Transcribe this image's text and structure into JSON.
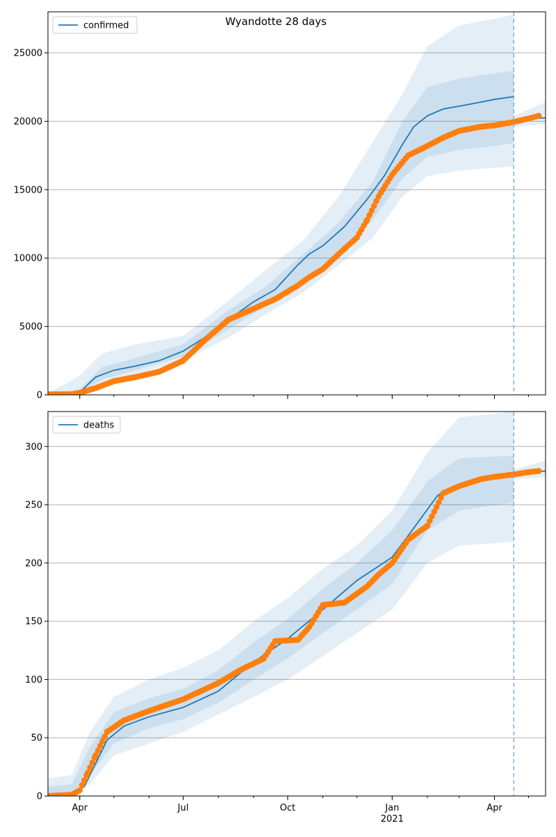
{
  "title": "Wyandotte 28 days",
  "colors": {
    "model": "#1f77b4",
    "observed": "#ff7f0e",
    "band": "#1f77b4",
    "grid": "#b0b0b0",
    "forecast_line": "#7fb0d5"
  },
  "x_ticks": [
    {
      "date": "2020-04-01",
      "label": "Apr"
    },
    {
      "date": "2020-07-01",
      "label": "Jul"
    },
    {
      "date": "2020-10-01",
      "label": "Oct"
    },
    {
      "date": "2021-01-01",
      "label": "Jan",
      "sublabel": "2021"
    },
    {
      "date": "2021-04-01",
      "label": "Apr"
    }
  ],
  "chart_data": [
    {
      "type": "line",
      "legend": "confirmed",
      "legend_position": "top-left",
      "grid": "horizontal",
      "xlim": [
        "2020-03-04",
        "2021-05-16"
      ],
      "ylim": [
        0,
        28000
      ],
      "yticks": [
        0,
        5000,
        10000,
        15000,
        20000,
        25000
      ],
      "forecast_date": "2021-04-18",
      "series": [
        {
          "name": "confirmed",
          "role": "model",
          "x": [
            "2020-03-04",
            "2020-03-20",
            "2020-04-01",
            "2020-04-15",
            "2020-05-01",
            "2020-05-20",
            "2020-06-10",
            "2020-07-01",
            "2020-07-20",
            "2020-08-10",
            "2020-09-01",
            "2020-09-20",
            "2020-10-10",
            "2020-10-20",
            "2020-11-01",
            "2020-11-20",
            "2020-12-10",
            "2020-12-25",
            "2021-01-10",
            "2021-01-20",
            "2021-02-01",
            "2021-02-15",
            "2021-03-01",
            "2021-03-20",
            "2021-04-01",
            "2021-04-18"
          ],
          "y": [
            0,
            0,
            200,
            1300,
            1800,
            2100,
            2500,
            3200,
            4200,
            5500,
            6800,
            7700,
            9500,
            10300,
            10900,
            12300,
            14300,
            16000,
            18300,
            19600,
            20400,
            20900,
            21100,
            21400,
            21600,
            21800
          ]
        },
        {
          "name": "forecast",
          "role": "model",
          "x": [
            "2021-04-18",
            "2021-04-25",
            "2021-05-05",
            "2021-05-16"
          ],
          "y": [
            20000,
            20100,
            20200,
            20250
          ]
        },
        {
          "name": "observed",
          "role": "observed",
          "x": [
            "2020-03-04",
            "2020-03-25",
            "2020-04-01",
            "2020-04-15",
            "2020-05-01",
            "2020-05-20",
            "2020-06-10",
            "2020-07-01",
            "2020-07-20",
            "2020-08-10",
            "2020-09-01",
            "2020-09-20",
            "2020-10-10",
            "2020-10-20",
            "2020-11-01",
            "2020-11-15",
            "2020-12-01",
            "2020-12-10",
            "2020-12-20",
            "2021-01-01",
            "2021-01-15",
            "2021-02-01",
            "2021-02-15",
            "2021-03-01",
            "2021-03-20",
            "2021-04-01",
            "2021-04-15",
            "2021-05-01",
            "2021-05-10"
          ],
          "y": [
            50,
            50,
            150,
            500,
            1000,
            1300,
            1700,
            2500,
            4000,
            5500,
            6300,
            7000,
            8000,
            8600,
            9200,
            10300,
            11500,
            12800,
            14500,
            16100,
            17500,
            18200,
            18800,
            19300,
            19600,
            19700,
            19900,
            20200,
            20400
          ]
        },
        {
          "name": "band-outer",
          "role": "band",
          "x": [
            "2020-03-04",
            "2020-04-01",
            "2020-04-20",
            "2020-05-20",
            "2020-07-01",
            "2020-08-10",
            "2020-09-10",
            "2020-10-15",
            "2020-11-15",
            "2020-12-15",
            "2021-01-10",
            "2021-02-01",
            "2021-03-01",
            "2021-04-01",
            "2021-04-18"
          ],
          "low": [
            0,
            50,
            800,
            1500,
            2500,
            4200,
            5800,
            7500,
            9500,
            11500,
            14500,
            16000,
            16400,
            16600,
            16700
          ],
          "high": [
            100,
            1400,
            3000,
            3700,
            4300,
            6900,
            9000,
            11300,
            14500,
            18500,
            22000,
            25500,
            27000,
            27500,
            27800
          ]
        },
        {
          "name": "band-inner",
          "role": "band",
          "x": [
            "2020-03-04",
            "2020-04-01",
            "2020-04-20",
            "2020-05-20",
            "2020-07-01",
            "2020-08-10",
            "2020-09-10",
            "2020-10-15",
            "2020-11-15",
            "2020-12-15",
            "2021-01-10",
            "2021-02-01",
            "2021-03-01",
            "2021-04-01",
            "2021-04-18"
          ],
          "low": [
            0,
            150,
            1100,
            1800,
            2800,
            4800,
            6400,
            8200,
            10400,
            12800,
            15800,
            17400,
            17900,
            18200,
            18400
          ],
          "high": [
            50,
            400,
            2000,
            2700,
            3700,
            6200,
            7800,
            10300,
            12600,
            15600,
            20000,
            22500,
            23100,
            23500,
            23700
          ]
        },
        {
          "name": "band-future",
          "role": "band",
          "x": [
            "2021-04-18",
            "2021-05-16"
          ],
          "low": [
            19600,
            19800
          ],
          "high": [
            20400,
            21400
          ]
        }
      ]
    },
    {
      "type": "line",
      "legend": "deaths",
      "legend_position": "top-left",
      "grid": "horizontal",
      "xlim": [
        "2020-03-04",
        "2021-05-16"
      ],
      "ylim": [
        0,
        330
      ],
      "yticks": [
        0,
        50,
        100,
        150,
        200,
        250,
        300
      ],
      "forecast_date": "2021-04-18",
      "series": [
        {
          "name": "deaths",
          "role": "model",
          "x": [
            "2020-03-04",
            "2020-03-25",
            "2020-04-05",
            "2020-04-15",
            "2020-04-25",
            "2020-05-10",
            "2020-06-01",
            "2020-07-01",
            "2020-08-01",
            "2020-09-01",
            "2020-10-01",
            "2020-11-01",
            "2020-12-01",
            "2021-01-01",
            "2021-01-20",
            "2021-02-10",
            "2021-03-01",
            "2021-03-20",
            "2021-04-18"
          ],
          "y": [
            0,
            2,
            8,
            28,
            48,
            60,
            68,
            76,
            90,
            115,
            135,
            160,
            185,
            205,
            230,
            258,
            268,
            272,
            275
          ]
        },
        {
          "name": "forecast",
          "role": "model",
          "x": [
            "2021-04-18",
            "2021-05-16"
          ],
          "y": [
            276,
            279
          ]
        },
        {
          "name": "observed",
          "role": "observed",
          "x": [
            "2020-03-04",
            "2020-03-25",
            "2020-04-01",
            "2020-04-08",
            "2020-04-15",
            "2020-04-25",
            "2020-05-10",
            "2020-06-01",
            "2020-07-01",
            "2020-08-01",
            "2020-08-20",
            "2020-09-10",
            "2020-09-20",
            "2020-10-10",
            "2020-10-20",
            "2020-11-01",
            "2020-11-20",
            "2020-12-10",
            "2020-12-20",
            "2021-01-01",
            "2021-01-15",
            "2021-02-01",
            "2021-02-15",
            "2021-03-01",
            "2021-03-20",
            "2021-04-01",
            "2021-04-18",
            "2021-05-01",
            "2021-05-10"
          ],
          "y": [
            0,
            1,
            5,
            20,
            35,
            55,
            65,
            73,
            83,
            97,
            108,
            118,
            133,
            134,
            145,
            164,
            166,
            180,
            190,
            200,
            220,
            232,
            260,
            266,
            272,
            274,
            276,
            278,
            279
          ]
        },
        {
          "name": "band-outer",
          "role": "band",
          "x": [
            "2020-03-04",
            "2020-03-25",
            "2020-04-10",
            "2020-05-01",
            "2020-06-01",
            "2020-07-01",
            "2020-08-01",
            "2020-09-01",
            "2020-10-01",
            "2020-11-01",
            "2020-12-01",
            "2021-01-01",
            "2021-02-01",
            "2021-03-01",
            "2021-04-18"
          ],
          "low": [
            0,
            0,
            10,
            35,
            45,
            55,
            70,
            85,
            100,
            120,
            140,
            160,
            200,
            215,
            218
          ],
          "high": [
            15,
            18,
            55,
            85,
            100,
            110,
            125,
            150,
            170,
            195,
            215,
            245,
            295,
            325,
            330
          ]
        },
        {
          "name": "band-inner",
          "role": "band",
          "x": [
            "2020-03-04",
            "2020-03-25",
            "2020-04-10",
            "2020-05-01",
            "2020-06-01",
            "2020-07-01",
            "2020-08-01",
            "2020-09-01",
            "2020-10-01",
            "2020-11-01",
            "2020-12-01",
            "2021-01-01",
            "2021-02-01",
            "2021-03-01",
            "2021-04-18"
          ],
          "low": [
            0,
            1,
            18,
            45,
            58,
            66,
            80,
            100,
            118,
            140,
            160,
            182,
            228,
            245,
            252
          ],
          "high": [
            8,
            10,
            42,
            72,
            84,
            92,
            108,
            132,
            152,
            178,
            200,
            228,
            270,
            290,
            292
          ]
        },
        {
          "name": "band-future",
          "role": "band",
          "x": [
            "2021-04-18",
            "2021-05-16"
          ],
          "low": [
            272,
            274
          ],
          "high": [
            280,
            288
          ]
        }
      ]
    }
  ]
}
